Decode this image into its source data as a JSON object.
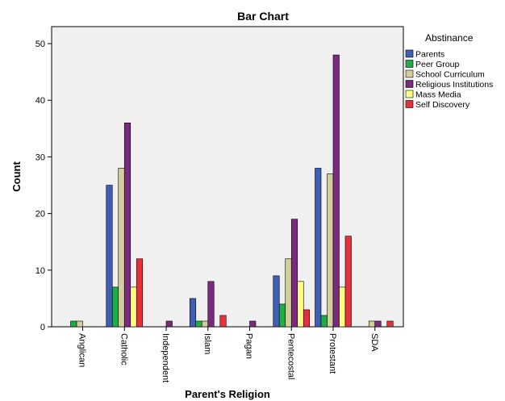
{
  "chart_data": {
    "type": "bar",
    "title": "Bar Chart",
    "xlabel": "Parent's Religion",
    "ylabel": "Count",
    "ylim": [
      0,
      53
    ],
    "yticks": [
      0,
      10,
      20,
      30,
      40,
      50
    ],
    "grid": false,
    "legend_position": "right",
    "legend_title": "Abstinance",
    "categories": [
      "Anglican",
      "Catholic",
      "Independent",
      "Islam",
      "Pagan",
      "Pentecostal",
      "Protestant",
      "SDA"
    ],
    "series": [
      {
        "name": "Parents",
        "color": "#3f5fb2",
        "values": [
          0,
          25,
          0,
          5,
          0,
          9,
          28,
          0
        ]
      },
      {
        "name": "Peer Group",
        "color": "#1fae45",
        "values": [
          1,
          7,
          0,
          1,
          0,
          4,
          2,
          0
        ]
      },
      {
        "name": "School Curriculum",
        "color": "#d3ce9c",
        "values": [
          1,
          28,
          0,
          1,
          0,
          12,
          27,
          1
        ]
      },
      {
        "name": "Religious Institutions",
        "color": "#7b2a80",
        "values": [
          0,
          36,
          1,
          8,
          1,
          19,
          48,
          1
        ]
      },
      {
        "name": "Mass Media",
        "color": "#fdfd86",
        "values": [
          0,
          7,
          0,
          0,
          0,
          8,
          7,
          0
        ]
      },
      {
        "name": "Self Discovery",
        "color": "#e8303a",
        "values": [
          0,
          12,
          0,
          2,
          0,
          3,
          16,
          1
        ]
      }
    ],
    "plot_background": "#f0f0f0"
  }
}
